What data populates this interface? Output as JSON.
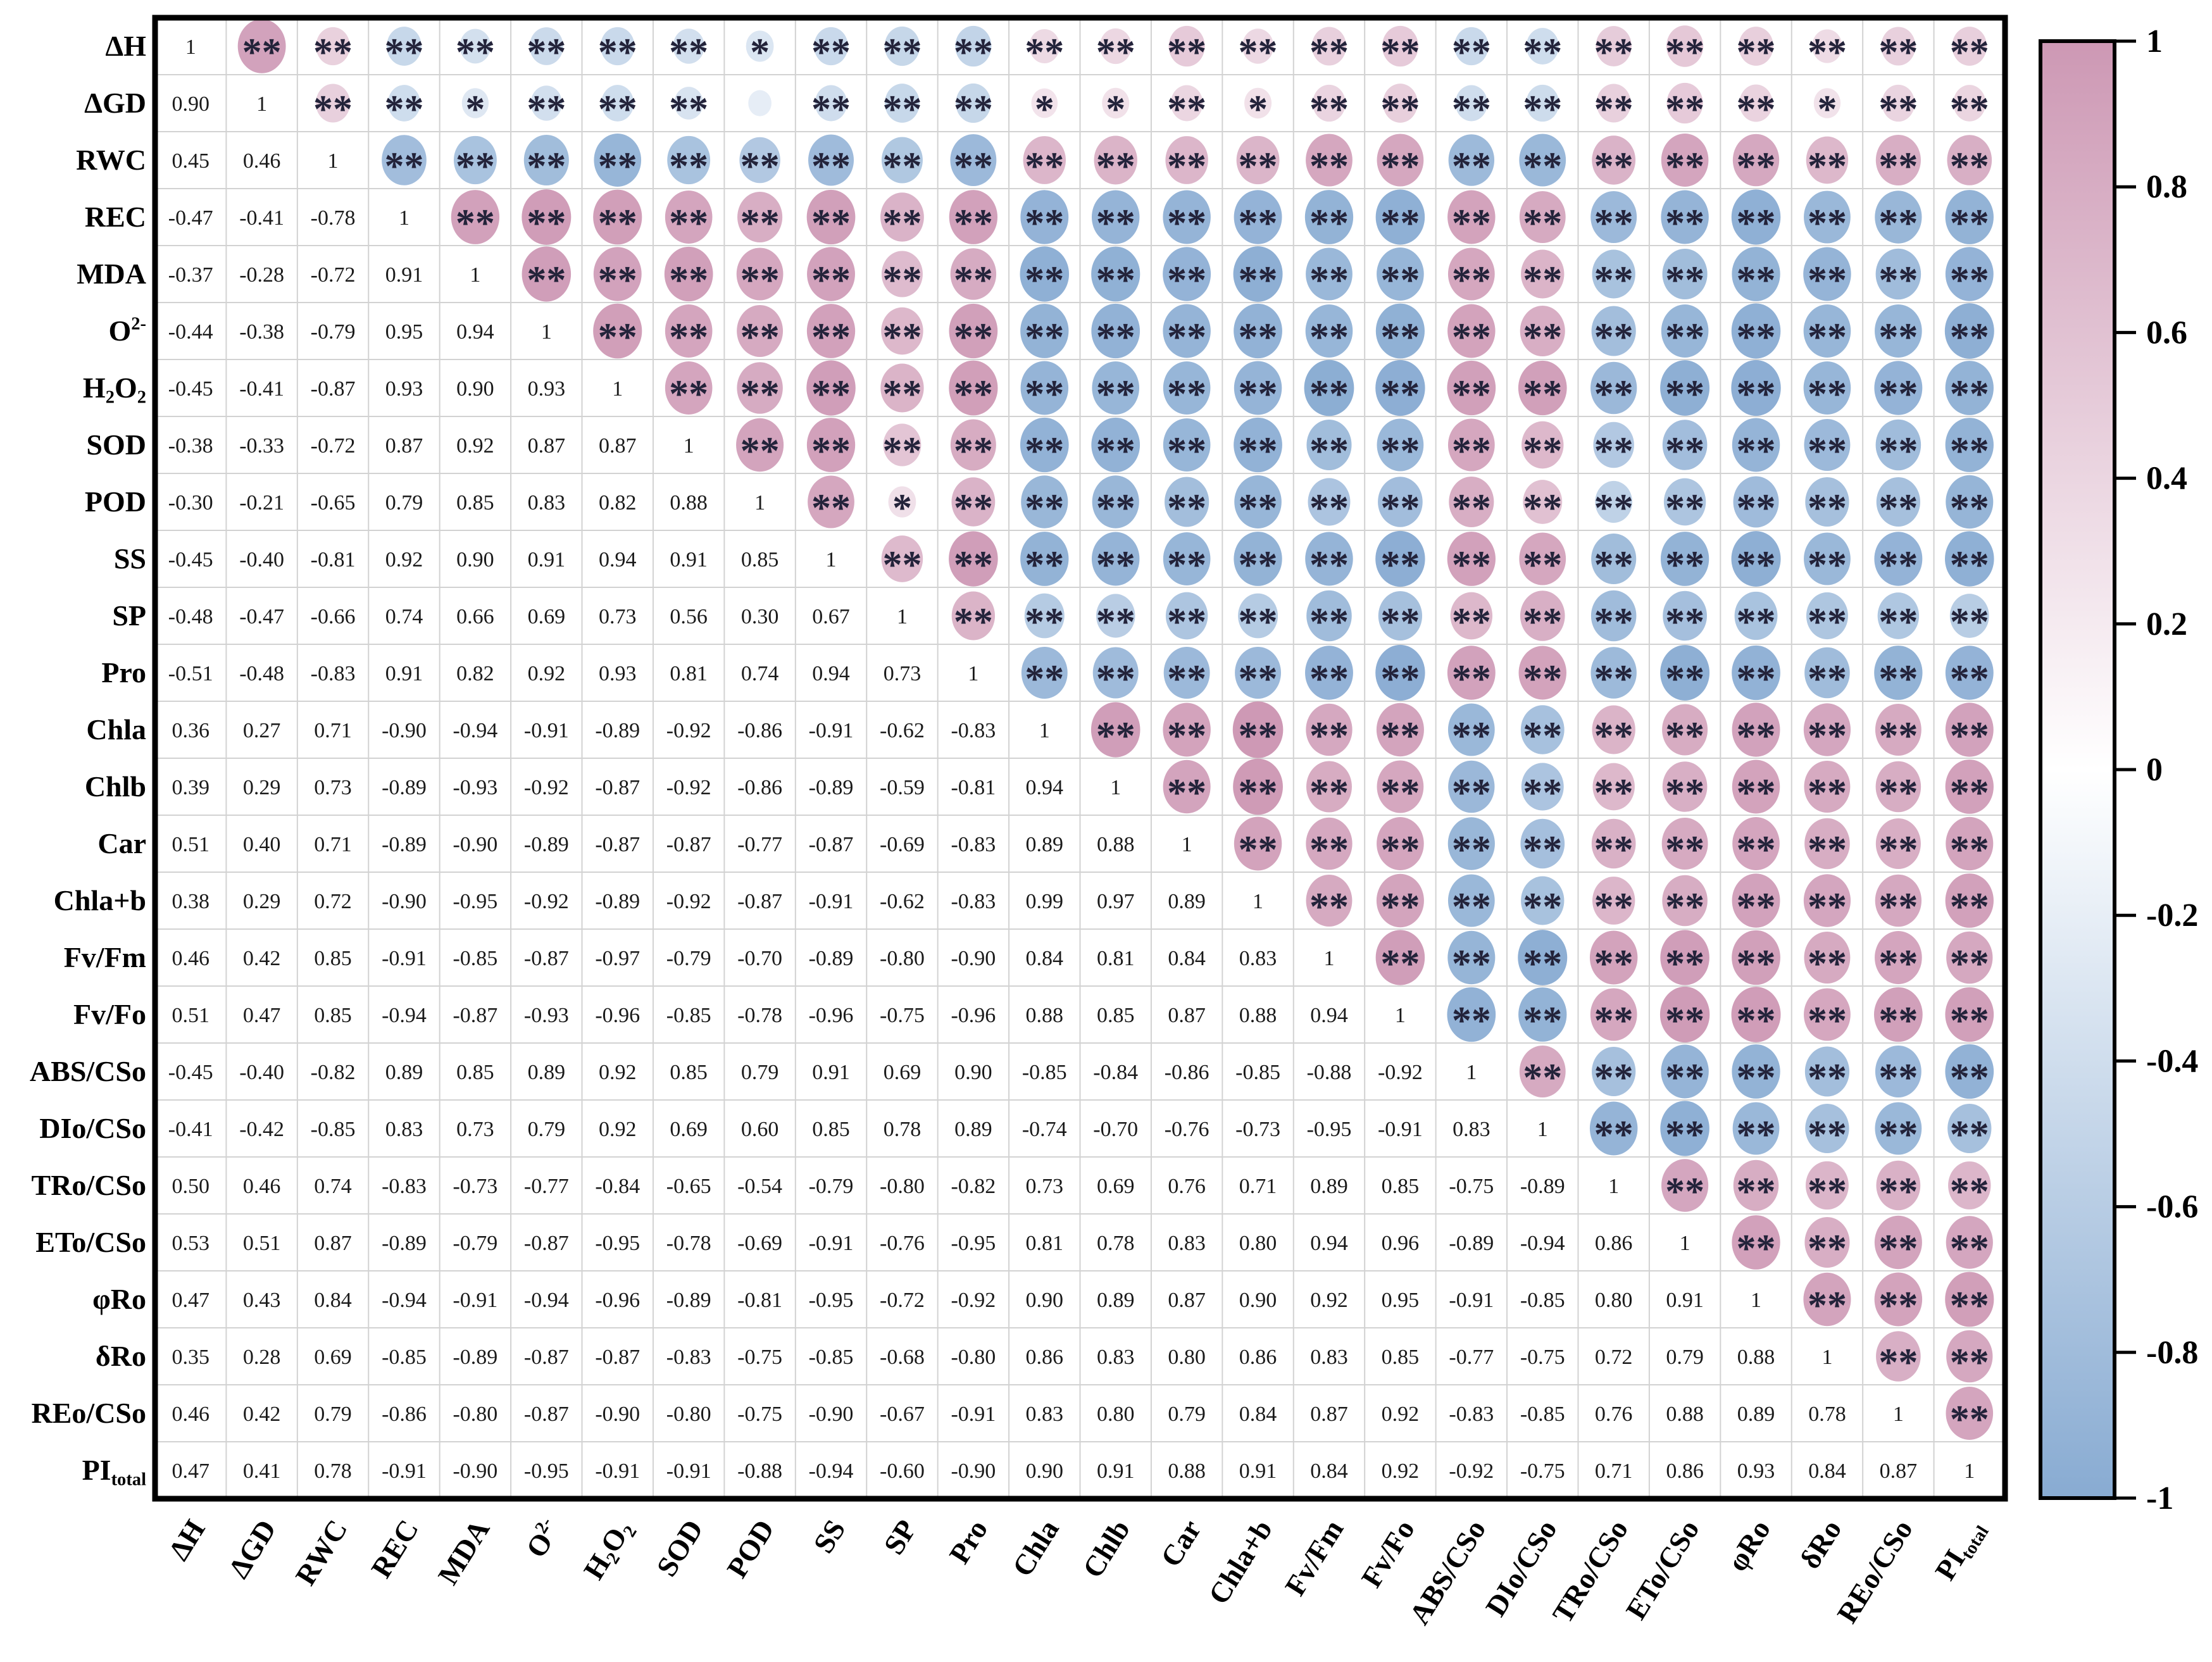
{
  "page": {
    "background": "#ffffff"
  },
  "chart_data": {
    "type": "heatmap",
    "subtype": "correlation-matrix-correlogram",
    "title": "",
    "description_visible": "26x26 correlation matrix: lower triangle shows correlation coefficients, upper triangle shows colored circles sized/colored by correlation with significance stars",
    "variables": [
      "ΔH",
      "ΔGD",
      "RWC",
      "REC",
      "MDA",
      "O^{2-}",
      "H_{2}O_{2}",
      "SOD",
      "POD",
      "SS",
      "SP",
      "Pro",
      "Chla",
      "Chlb",
      "Car",
      "Chla+b",
      "Fv/Fm",
      "Fv/Fo",
      "ABS/CSo",
      "DIo/CSo",
      "TRo/CSo",
      "ETo/CSo",
      "φRo",
      "δRo",
      "REo/CSo",
      "PI_{total}"
    ],
    "lower_triangle_rows": [
      [
        1
      ],
      [
        0.9,
        1
      ],
      [
        0.45,
        0.46,
        1
      ],
      [
        -0.47,
        -0.41,
        -0.78,
        1
      ],
      [
        -0.37,
        -0.28,
        -0.72,
        0.91,
        1
      ],
      [
        -0.44,
        -0.38,
        -0.79,
        0.95,
        0.94,
        1
      ],
      [
        -0.45,
        -0.41,
        -0.87,
        0.93,
        0.9,
        0.93,
        1
      ],
      [
        -0.38,
        -0.33,
        -0.72,
        0.87,
        0.92,
        0.87,
        0.87,
        1
      ],
      [
        -0.3,
        -0.21,
        -0.65,
        0.79,
        0.85,
        0.83,
        0.82,
        0.88,
        1
      ],
      [
        -0.45,
        -0.4,
        -0.81,
        0.92,
        0.9,
        0.91,
        0.94,
        0.91,
        0.85,
        1
      ],
      [
        -0.48,
        -0.47,
        -0.66,
        0.74,
        0.66,
        0.69,
        0.73,
        0.56,
        0.3,
        0.67,
        1
      ],
      [
        -0.51,
        -0.48,
        -0.83,
        0.91,
        0.82,
        0.92,
        0.93,
        0.81,
        0.74,
        0.94,
        0.73,
        1
      ],
      [
        0.36,
        0.27,
        0.71,
        -0.9,
        -0.94,
        -0.91,
        -0.89,
        -0.92,
        -0.86,
        -0.91,
        -0.62,
        -0.83,
        1
      ],
      [
        0.39,
        0.29,
        0.73,
        -0.89,
        -0.93,
        -0.92,
        -0.87,
        -0.92,
        -0.86,
        -0.89,
        -0.59,
        -0.81,
        0.94,
        1
      ],
      [
        0.51,
        0.4,
        0.71,
        -0.89,
        -0.9,
        -0.89,
        -0.87,
        -0.87,
        -0.77,
        -0.87,
        -0.69,
        -0.83,
        0.89,
        0.88,
        1
      ],
      [
        0.38,
        0.29,
        0.72,
        -0.9,
        -0.95,
        -0.92,
        -0.89,
        -0.92,
        -0.87,
        -0.91,
        -0.62,
        -0.83,
        0.99,
        0.97,
        0.89,
        1
      ],
      [
        0.46,
        0.42,
        0.85,
        -0.91,
        -0.85,
        -0.87,
        -0.97,
        -0.79,
        -0.7,
        -0.89,
        -0.8,
        -0.9,
        0.84,
        0.81,
        0.84,
        0.83,
        1
      ],
      [
        0.51,
        0.47,
        0.85,
        -0.94,
        -0.87,
        -0.93,
        -0.96,
        -0.85,
        -0.78,
        -0.96,
        -0.75,
        -0.96,
        0.88,
        0.85,
        0.87,
        0.88,
        0.94,
        1
      ],
      [
        -0.45,
        -0.4,
        -0.82,
        0.89,
        0.85,
        0.89,
        0.92,
        0.85,
        0.79,
        0.91,
        0.69,
        0.9,
        -0.85,
        -0.84,
        -0.86,
        -0.85,
        -0.88,
        -0.92,
        1
      ],
      [
        -0.41,
        -0.42,
        -0.85,
        0.83,
        0.73,
        0.79,
        0.92,
        0.69,
        0.6,
        0.85,
        0.78,
        0.89,
        -0.74,
        -0.7,
        -0.76,
        -0.73,
        -0.95,
        -0.91,
        0.83,
        1
      ],
      [
        0.5,
        0.46,
        0.74,
        -0.83,
        -0.73,
        -0.77,
        -0.84,
        -0.65,
        -0.54,
        -0.79,
        -0.8,
        -0.82,
        0.73,
        0.69,
        0.76,
        0.71,
        0.89,
        0.85,
        -0.75,
        -0.89,
        1
      ],
      [
        0.53,
        0.51,
        0.87,
        -0.89,
        -0.79,
        -0.87,
        -0.95,
        -0.78,
        -0.69,
        -0.91,
        -0.76,
        -0.95,
        0.81,
        0.78,
        0.83,
        0.8,
        0.94,
        0.96,
        -0.89,
        -0.94,
        0.86,
        1
      ],
      [
        0.47,
        0.43,
        0.84,
        -0.94,
        -0.91,
        -0.94,
        -0.96,
        -0.89,
        -0.81,
        -0.95,
        -0.72,
        -0.92,
        0.9,
        0.89,
        0.87,
        0.9,
        0.92,
        0.95,
        -0.91,
        -0.85,
        0.8,
        0.91,
        1
      ],
      [
        0.35,
        0.28,
        0.69,
        -0.85,
        -0.89,
        -0.87,
        -0.87,
        -0.83,
        -0.75,
        -0.85,
        -0.68,
        -0.8,
        0.86,
        0.83,
        0.8,
        0.86,
        0.83,
        0.85,
        -0.77,
        -0.75,
        0.72,
        0.79,
        0.88,
        1
      ],
      [
        0.46,
        0.42,
        0.79,
        -0.86,
        -0.8,
        -0.87,
        -0.9,
        -0.8,
        -0.75,
        -0.9,
        -0.67,
        -0.91,
        0.83,
        0.8,
        0.79,
        0.84,
        0.87,
        0.92,
        -0.83,
        -0.85,
        0.76,
        0.88,
        0.89,
        0.78,
        1
      ],
      [
        0.47,
        0.41,
        0.78,
        -0.91,
        -0.9,
        -0.95,
        -0.91,
        -0.91,
        -0.88,
        -0.94,
        -0.6,
        -0.9,
        0.9,
        0.91,
        0.88,
        0.91,
        0.84,
        0.92,
        -0.92,
        -0.75,
        0.71,
        0.86,
        0.93,
        0.84,
        0.87,
        1
      ]
    ],
    "significance": {
      "two_star_symbol": "**",
      "one_star_symbol": "*",
      "two_star_min_abs_r": 0.33,
      "one_star_min_abs_r": 0.26
    },
    "colorbar": {
      "tick_labels": [
        "1",
        "0.8",
        "0.6",
        "0.4",
        "0.2",
        "0",
        "-0.2",
        "-0.4",
        "-0.6",
        "-0.8",
        "-1"
      ],
      "tick_values": [
        1,
        0.8,
        0.6,
        0.4,
        0.2,
        0,
        -0.2,
        -0.4,
        -0.6,
        -0.8,
        -1
      ],
      "range": [
        -1,
        1
      ],
      "legend_position": "right"
    },
    "colors": {
      "positive_max": "#cd98b4",
      "zero": "#ffffff",
      "negative_max": "#88abd2",
      "star": "#23233a",
      "number_text": "#1a1a1a",
      "label_text": "#000000",
      "grid_line": "#d2d2d2",
      "outer_border": "#000000"
    },
    "layout": {
      "grid": true,
      "upper_triangle": "circles-with-significance-stars",
      "lower_triangle": "coefficient-values",
      "diagonal_value": "1"
    }
  }
}
